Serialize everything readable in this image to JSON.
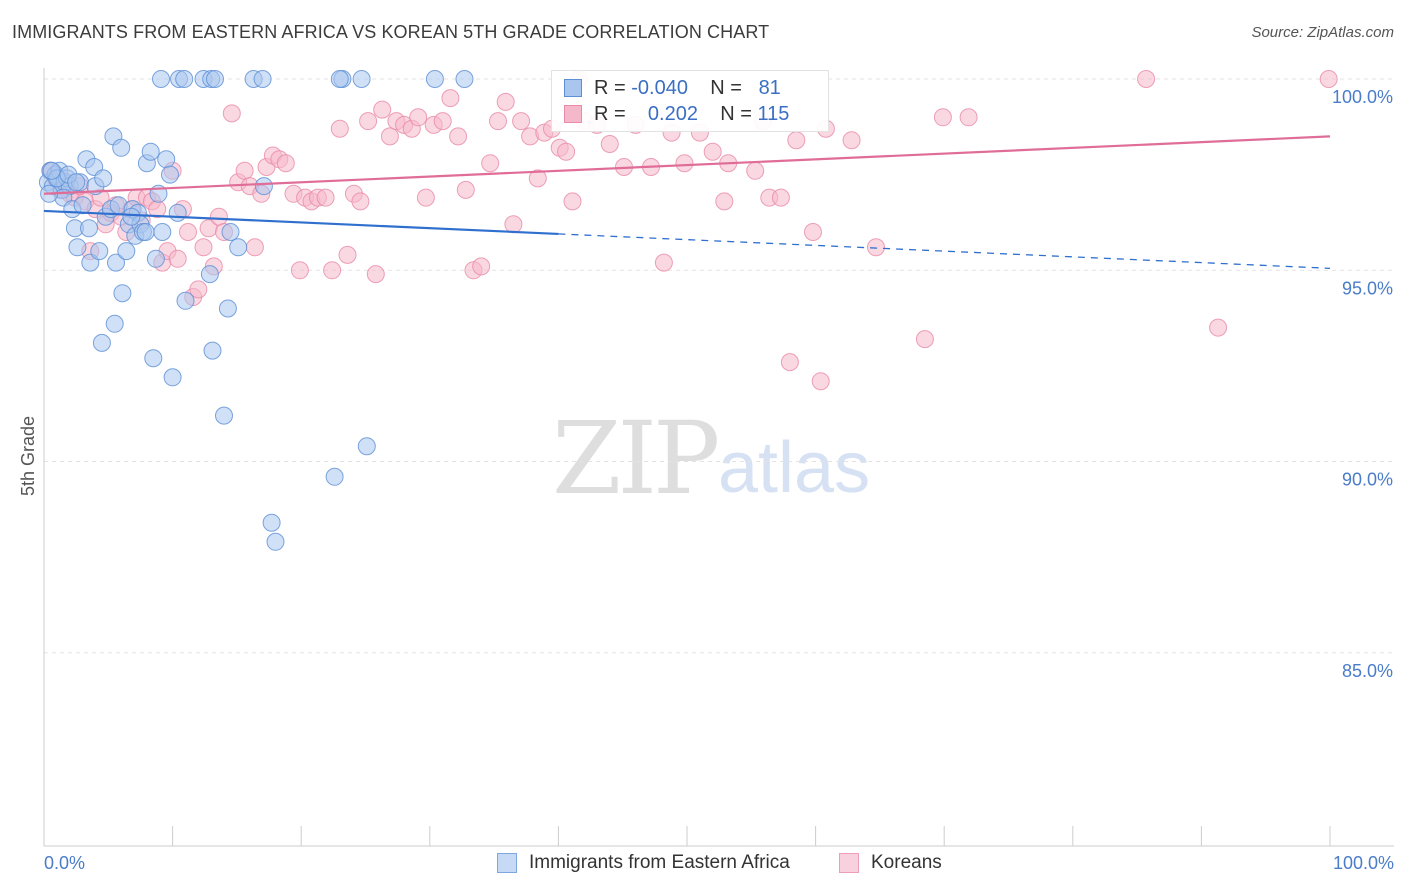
{
  "title": "IMMIGRANTS FROM EASTERN AFRICA VS KOREAN 5TH GRADE CORRELATION CHART",
  "source": "Source: ZipAtlas.com",
  "watermark": {
    "zip": "ZIP",
    "atlas": "atlas"
  },
  "legend": {
    "rows": [
      {
        "r_label": "R =",
        "r_value": "-0.040",
        "n_label": "N =",
        "n_value": "81"
      },
      {
        "r_label": "R =",
        "r_value": "0.202",
        "n_label": "N =",
        "n_value": "115"
      }
    ]
  },
  "bottom_legend": [
    "Immigrants from Eastern Africa",
    "Koreans"
  ],
  "colors": {
    "blue_fill": "#a9c6ef",
    "blue_stroke": "#5b8fd6",
    "blue_line": "#2f6fce",
    "pink_fill": "#f5b8cb",
    "pink_stroke": "#e88aa8",
    "pink_line": "#e06d97",
    "grid": "#e3e3e3",
    "tick_text": "#4a7cc9"
  },
  "chart_data": {
    "type": "scatter",
    "title": "IMMIGRANTS FROM EASTERN AFRICA VS KOREAN 5TH GRADE CORRELATION CHART",
    "xlabel": "",
    "ylabel": "5th Grade",
    "xlim": [
      0,
      100
    ],
    "ylim": [
      80.3,
      100.7
    ],
    "x_tick_labels": [
      "0.0%",
      "100.0%"
    ],
    "y_ticks": [
      85,
      90,
      95,
      100
    ],
    "y_tick_labels": [
      "85.0%",
      "90.0%",
      "95.0%",
      "100.0%"
    ],
    "grid": true,
    "legend_position": "top-center",
    "series": [
      {
        "name": "Immigrants from Eastern Africa",
        "color": "#a9c6ef",
        "r": -0.04,
        "n": 81,
        "trend": {
          "x": [
            0,
            40,
            100
          ],
          "y": [
            96.55,
            95.95,
            95.05
          ],
          "solid_until": 40
        },
        "points": [
          [
            0.3,
            97.3
          ],
          [
            0.5,
            97.6
          ],
          [
            0.7,
            97.2
          ],
          [
            0.9,
            97.5
          ],
          [
            1.1,
            97.4
          ],
          [
            1.2,
            97.6
          ],
          [
            1.4,
            97.1
          ],
          [
            1.6,
            97.3
          ],
          [
            1.8,
            97.4
          ],
          [
            2.0,
            97.2
          ],
          [
            1.0,
            97.4
          ],
          [
            0.6,
            97.6
          ],
          [
            1.5,
            96.9
          ],
          [
            2.2,
            96.6
          ],
          [
            2.4,
            96.1
          ],
          [
            2.6,
            95.6
          ],
          [
            2.8,
            97.3
          ],
          [
            3.0,
            96.7
          ],
          [
            3.3,
            97.9
          ],
          [
            3.5,
            96.1
          ],
          [
            3.6,
            95.2
          ],
          [
            3.9,
            97.7
          ],
          [
            4.0,
            97.2
          ],
          [
            4.3,
            95.5
          ],
          [
            4.5,
            93.1
          ],
          [
            4.8,
            96.4
          ],
          [
            5.2,
            96.6
          ],
          [
            5.4,
            98.5
          ],
          [
            5.6,
            95.2
          ],
          [
            5.8,
            96.7
          ],
          [
            6.0,
            98.2
          ],
          [
            6.1,
            94.4
          ],
          [
            6.4,
            95.5
          ],
          [
            5.5,
            93.6
          ],
          [
            6.6,
            96.2
          ],
          [
            6.9,
            96.6
          ],
          [
            7.1,
            95.9
          ],
          [
            7.3,
            96.5
          ],
          [
            7.5,
            96.2
          ],
          [
            7.7,
            96.0
          ],
          [
            8.0,
            97.8
          ],
          [
            8.3,
            98.1
          ],
          [
            8.5,
            92.7
          ],
          [
            8.7,
            95.3
          ],
          [
            8.9,
            97.0
          ],
          [
            9.2,
            96.0
          ],
          [
            9.5,
            97.9
          ],
          [
            9.8,
            97.5
          ],
          [
            10.0,
            92.2
          ],
          [
            10.4,
            96.5
          ],
          [
            11.0,
            94.2
          ],
          [
            12.9,
            94.9
          ],
          [
            13.1,
            92.9
          ],
          [
            14.0,
            91.2
          ],
          [
            14.3,
            94.0
          ],
          [
            14.5,
            96.0
          ],
          [
            15.1,
            95.6
          ],
          [
            17.1,
            97.2
          ],
          [
            17.7,
            88.4
          ],
          [
            18.0,
            87.9
          ],
          [
            22.6,
            89.6
          ],
          [
            23.2,
            100.0
          ],
          [
            25.1,
            90.4
          ],
          [
            12.4,
            100.0
          ],
          [
            9.1,
            100.0
          ],
          [
            10.5,
            100.0
          ],
          [
            10.9,
            100.0
          ],
          [
            13.0,
            100.0
          ],
          [
            13.3,
            100.0
          ],
          [
            16.3,
            100.0
          ],
          [
            17.0,
            100.0
          ],
          [
            23.0,
            100.0
          ],
          [
            24.7,
            100.0
          ],
          [
            30.4,
            100.0
          ],
          [
            32.7,
            100.0
          ],
          [
            0.4,
            97.0
          ],
          [
            1.9,
            97.5
          ],
          [
            2.5,
            97.3
          ],
          [
            4.6,
            97.4
          ],
          [
            6.8,
            96.4
          ],
          [
            7.9,
            96.0
          ]
        ]
      },
      {
        "name": "Koreans",
        "color": "#f5b8cb",
        "r": 0.202,
        "n": 115,
        "trend": {
          "x": [
            0,
            100
          ],
          "y": [
            97.0,
            98.5
          ]
        },
        "points": [
          [
            0.5,
            97.6
          ],
          [
            0.9,
            97.4
          ],
          [
            1.3,
            97.1
          ],
          [
            1.7,
            97.3
          ],
          [
            2.0,
            97.0
          ],
          [
            2.4,
            96.9
          ],
          [
            2.8,
            97.2
          ],
          [
            3.2,
            96.8
          ],
          [
            3.6,
            95.5
          ],
          [
            4.0,
            96.6
          ],
          [
            4.4,
            96.9
          ],
          [
            4.8,
            96.2
          ],
          [
            5.2,
            96.5
          ],
          [
            5.6,
            96.7
          ],
          [
            6.0,
            96.4
          ],
          [
            6.4,
            96.0
          ],
          [
            6.8,
            96.6
          ],
          [
            7.2,
            96.9
          ],
          [
            7.6,
            96.3
          ],
          [
            8.0,
            96.9
          ],
          [
            8.4,
            96.8
          ],
          [
            8.8,
            96.6
          ],
          [
            9.2,
            95.2
          ],
          [
            9.6,
            95.5
          ],
          [
            10.0,
            97.6
          ],
          [
            10.4,
            95.3
          ],
          [
            10.8,
            96.6
          ],
          [
            11.2,
            96.0
          ],
          [
            11.6,
            94.3
          ],
          [
            12.0,
            94.5
          ],
          [
            12.4,
            95.6
          ],
          [
            12.8,
            96.1
          ],
          [
            13.2,
            95.1
          ],
          [
            13.6,
            96.4
          ],
          [
            14.0,
            96.0
          ],
          [
            14.6,
            99.1
          ],
          [
            15.1,
            97.3
          ],
          [
            15.6,
            97.6
          ],
          [
            16.0,
            97.2
          ],
          [
            16.4,
            95.6
          ],
          [
            16.9,
            97.0
          ],
          [
            17.3,
            97.7
          ],
          [
            17.8,
            98.0
          ],
          [
            18.3,
            97.9
          ],
          [
            18.8,
            97.8
          ],
          [
            19.4,
            97.0
          ],
          [
            19.9,
            95.0
          ],
          [
            20.3,
            96.9
          ],
          [
            20.8,
            96.8
          ],
          [
            21.3,
            96.9
          ],
          [
            21.9,
            96.9
          ],
          [
            22.4,
            95.0
          ],
          [
            23.0,
            98.7
          ],
          [
            23.6,
            95.4
          ],
          [
            24.1,
            97.0
          ],
          [
            24.6,
            96.8
          ],
          [
            25.2,
            98.9
          ],
          [
            25.8,
            94.9
          ],
          [
            26.3,
            99.2
          ],
          [
            26.9,
            98.5
          ],
          [
            27.4,
            98.9
          ],
          [
            28.0,
            98.8
          ],
          [
            28.6,
            98.7
          ],
          [
            29.1,
            99.0
          ],
          [
            29.7,
            96.9
          ],
          [
            30.3,
            98.8
          ],
          [
            31.0,
            98.9
          ],
          [
            31.6,
            99.5
          ],
          [
            32.2,
            98.5
          ],
          [
            32.8,
            97.1
          ],
          [
            33.4,
            95.0
          ],
          [
            34.0,
            95.1
          ],
          [
            34.7,
            97.8
          ],
          [
            35.3,
            98.9
          ],
          [
            35.9,
            99.4
          ],
          [
            36.5,
            96.2
          ],
          [
            37.1,
            98.9
          ],
          [
            37.8,
            98.5
          ],
          [
            38.4,
            97.4
          ],
          [
            38.9,
            98.6
          ],
          [
            39.5,
            98.7
          ],
          [
            40.1,
            98.2
          ],
          [
            40.6,
            98.1
          ],
          [
            41.1,
            96.8
          ],
          [
            41.6,
            100.0
          ],
          [
            42.0,
            98.9
          ],
          [
            43.0,
            98.8
          ],
          [
            44.0,
            98.3
          ],
          [
            45.1,
            97.7
          ],
          [
            46.0,
            98.8
          ],
          [
            47.2,
            97.7
          ],
          [
            48.2,
            95.2
          ],
          [
            48.8,
            98.6
          ],
          [
            49.8,
            97.8
          ],
          [
            51.0,
            98.6
          ],
          [
            52.0,
            98.1
          ],
          [
            52.9,
            96.8
          ],
          [
            53.2,
            97.8
          ],
          [
            55.3,
            97.6
          ],
          [
            55.9,
            98.9
          ],
          [
            56.4,
            96.9
          ],
          [
            57.3,
            96.9
          ],
          [
            58.0,
            92.6
          ],
          [
            58.5,
            98.4
          ],
          [
            59.8,
            96.0
          ],
          [
            60.4,
            92.1
          ],
          [
            60.8,
            98.7
          ],
          [
            62.8,
            98.4
          ],
          [
            64.7,
            95.6
          ],
          [
            68.5,
            93.2
          ],
          [
            69.9,
            99.0
          ],
          [
            71.9,
            99.0
          ],
          [
            85.7,
            100.0
          ],
          [
            91.3,
            93.5
          ],
          [
            99.9,
            100.0
          ]
        ]
      }
    ]
  }
}
